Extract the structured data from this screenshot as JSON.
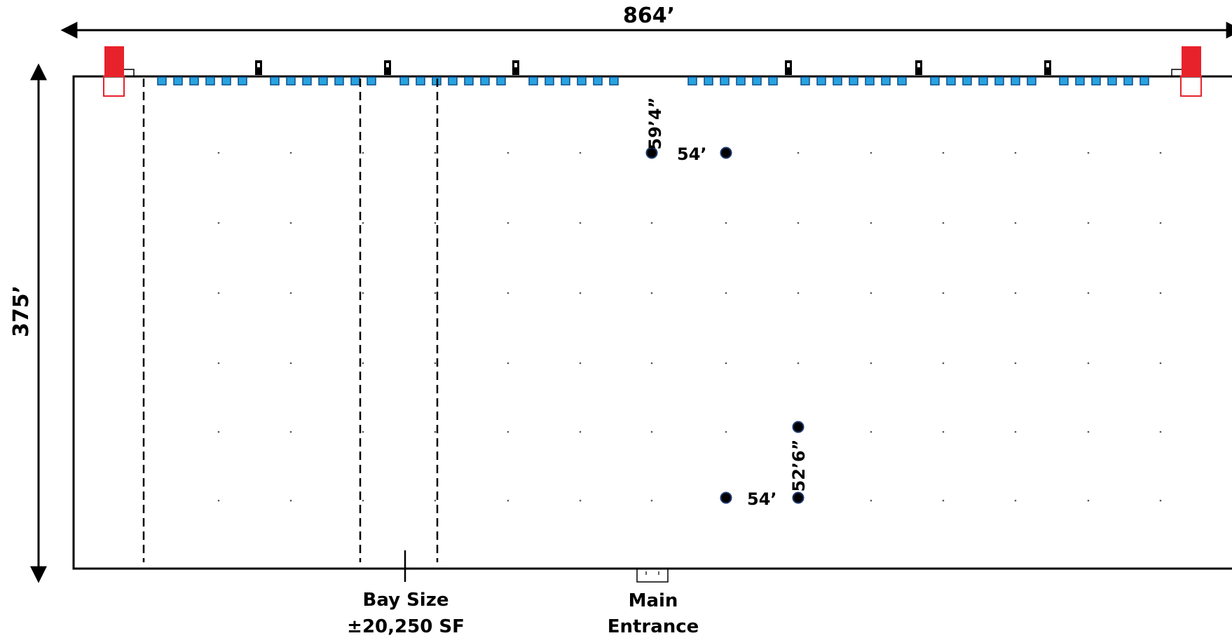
{
  "dimensions": {
    "width_label": "864’",
    "depth_label": "375’"
  },
  "column_spacing": {
    "top_row_vertical": "59’4”",
    "top_row_horizontal": "54’",
    "bottom_row_horizontal": "54’",
    "bottom_row_vertical": "52’6”"
  },
  "callouts": {
    "bay_size_line1": "Bay Size",
    "bay_size_line2": "±20,250 SF",
    "main_entrance_line1": "Main",
    "main_entrance_line2": "Entrance"
  },
  "colors": {
    "outline": "#000000",
    "dock_door_fill": "#29A3DF",
    "dock_door_stroke": "#0A4F8C",
    "corner_marker_red": "#E8222B",
    "column_marker_stroke": "#1F3A6E"
  }
}
